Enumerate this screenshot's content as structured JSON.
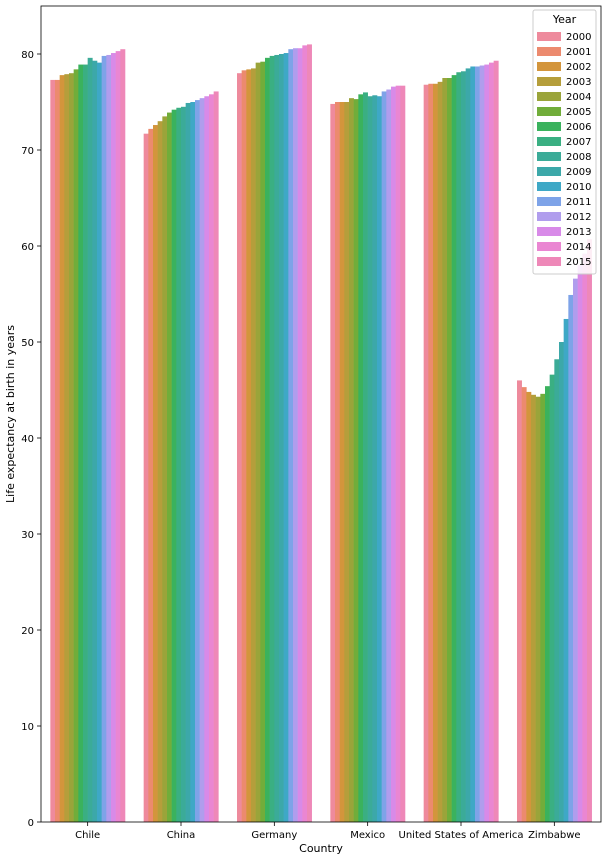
{
  "chart_data": {
    "type": "bar",
    "title": "",
    "xlabel": "Country",
    "ylabel": "Life expectancy at birth in years",
    "ylim": [
      0,
      85
    ],
    "yticks": [
      0,
      10,
      20,
      30,
      40,
      50,
      60,
      70,
      80
    ],
    "grid": false,
    "legend": {
      "title": "Year",
      "placement": "top-right"
    },
    "categories": [
      "Chile",
      "China",
      "Germany",
      "Mexico",
      "United States of America",
      "Zimbabwe"
    ],
    "series": [
      {
        "name": "2000",
        "color": "#ee8a9c",
        "values": [
          77.3,
          71.7,
          78.0,
          74.8,
          76.8,
          46.0
        ]
      },
      {
        "name": "2001",
        "color": "#ec8a6e",
        "values": [
          77.3,
          72.2,
          78.3,
          75.0,
          76.9,
          45.3
        ]
      },
      {
        "name": "2002",
        "color": "#d3953c",
        "values": [
          77.8,
          72.6,
          78.4,
          75.0,
          76.9,
          44.8
        ]
      },
      {
        "name": "2003",
        "color": "#b59e3b",
        "values": [
          77.9,
          73.0,
          78.5,
          75.0,
          77.1,
          44.5
        ]
      },
      {
        "name": "2004",
        "color": "#9aa43a",
        "values": [
          78.0,
          73.5,
          79.1,
          75.4,
          77.5,
          44.3
        ]
      },
      {
        "name": "2005",
        "color": "#71ad3a",
        "values": [
          78.4,
          73.9,
          79.2,
          75.3,
          77.5,
          44.6
        ]
      },
      {
        "name": "2006",
        "color": "#3ab25d",
        "values": [
          78.9,
          74.2,
          79.6,
          75.8,
          77.8,
          45.4
        ]
      },
      {
        "name": "2007",
        "color": "#3aaf82",
        "values": [
          78.9,
          74.4,
          79.8,
          76.0,
          78.1,
          46.6
        ]
      },
      {
        "name": "2008",
        "color": "#3bab98",
        "values": [
          79.6,
          74.5,
          79.9,
          75.6,
          78.2,
          48.2
        ]
      },
      {
        "name": "2009",
        "color": "#3ca8a9",
        "values": [
          79.3,
          74.9,
          80.0,
          75.7,
          78.5,
          50.0
        ]
      },
      {
        "name": "2010",
        "color": "#3ea8c6",
        "values": [
          79.1,
          75.0,
          80.1,
          75.6,
          78.7,
          52.4
        ]
      },
      {
        "name": "2011",
        "color": "#7ea3e8",
        "values": [
          79.8,
          75.2,
          80.5,
          76.1,
          78.7,
          54.9
        ]
      },
      {
        "name": "2012",
        "color": "#b09ded",
        "values": [
          79.9,
          75.4,
          80.6,
          76.3,
          78.8,
          56.6
        ]
      },
      {
        "name": "2013",
        "color": "#d88ae8",
        "values": [
          80.1,
          75.6,
          80.6,
          76.6,
          78.9,
          58.0
        ]
      },
      {
        "name": "2014",
        "color": "#ea86d2",
        "values": [
          80.3,
          75.8,
          80.9,
          76.7,
          79.1,
          59.2
        ]
      },
      {
        "name": "2015",
        "color": "#ee88b8",
        "values": [
          80.5,
          76.1,
          81.0,
          76.7,
          79.3,
          60.7
        ]
      }
    ]
  }
}
